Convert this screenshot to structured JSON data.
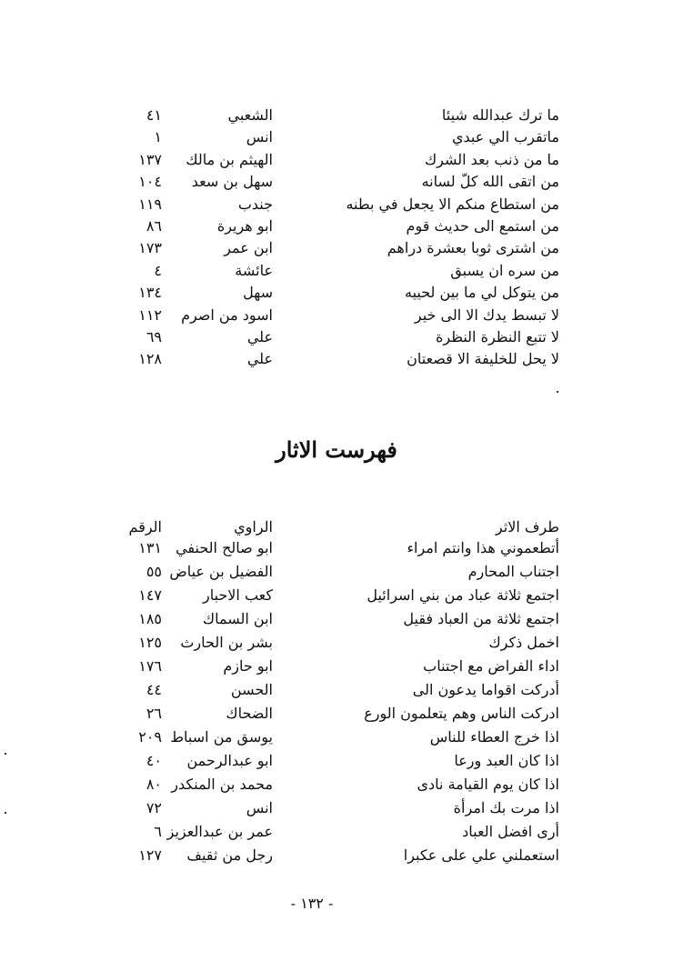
{
  "top_list": [
    {
      "text": "ما ترك عبدالله شيئا",
      "narrator": "الشعبي",
      "number": "٤١"
    },
    {
      "text": "ماتقرب الي عبدي",
      "narrator": "انس",
      "number": "١"
    },
    {
      "text": "ما من ذنب بعد الشرك",
      "narrator": "الهيثم بن مالك",
      "number": "١٣٧"
    },
    {
      "text": "من اتقى الله كلّ لسانه",
      "narrator": "سهل بن سعد",
      "number": "١٠٤"
    },
    {
      "text": "من استطاع منكم الا يجعل في بطنه",
      "narrator": "جندب",
      "number": "١١٩"
    },
    {
      "text": "من استمع الى حديث قوم",
      "narrator": "ابو هريرة",
      "number": "٨٦"
    },
    {
      "text": "من اشترى ثوبا بعشرة دراهم",
      "narrator": "ابن عمر",
      "number": "١٧٣"
    },
    {
      "text": "من سره ان يسبق",
      "narrator": "عائشة",
      "number": "٤"
    },
    {
      "text": "من يتوكل لي ما بين لحييه",
      "narrator": "سهل",
      "number": "١٣٤"
    },
    {
      "text": "لا تبسط يدك الا الى خير",
      "narrator": "اسود من اصرم",
      "number": "١١٢"
    },
    {
      "text": "لا تتبع النظرة النظرة",
      "narrator": "علي",
      "number": "٦٩"
    },
    {
      "text": "لا يحل للخليفة الا قصعتان",
      "narrator": "علي",
      "number": "١٢٨"
    }
  ],
  "section_title": "فهرست الاثار",
  "athar_header": {
    "text": "طرف الاثر",
    "narrator": "الراوي",
    "number": "الرقم"
  },
  "athar_list": [
    {
      "text": "أتطعموني هذا وانتم امراء",
      "narrator": "ابو صالح الحنفي",
      "number": "١٣١"
    },
    {
      "text": "اجتناب المحارم",
      "narrator": "الفضيل بن عياض",
      "number": "٥٥"
    },
    {
      "text": "اجتمع ثلاثة عباد من بني اسرائيل",
      "narrator": "كعب الاحبار",
      "number": "١٤٧"
    },
    {
      "text": "اجتمع ثلاثة من العباد فقيل",
      "narrator": "ابن السماك",
      "number": "١٨٥"
    },
    {
      "text": "اخمل ذكرك",
      "narrator": "بشر بن الحارث",
      "number": "١٢٥"
    },
    {
      "text": "اداء الفراض مع اجتناب",
      "narrator": "ابو حازم",
      "number": "١٧٦"
    },
    {
      "text": "أدركت اقواما يدعون الى",
      "narrator": "الحسن",
      "number": "٤٤"
    },
    {
      "text": "ادركت الناس وهم يتعلمون الورع",
      "narrator": "الضحاك",
      "number": "٢٦"
    },
    {
      "text": "اذا خرج العطاء للناس",
      "narrator": "يوسق من اسباط",
      "number": "٢٠٩"
    },
    {
      "text": "اذا كان العبد ورعا",
      "narrator": "ابو عبدالرحمن",
      "number": "٤٠"
    },
    {
      "text": "اذا كان يوم القيامة نادى",
      "narrator": "محمد بن المنكدر",
      "number": "٨٠"
    },
    {
      "text": "اذا مرت بك امرأة",
      "narrator": "انس",
      "number": "٧٢"
    },
    {
      "text": "أرى افضل العباد",
      "narrator": "عمر بن عبدالعزيز",
      "number": "٦"
    },
    {
      "text": "استعملني علي على عكبرا",
      "narrator": "رجل من ثقيف",
      "number": "١٢٧"
    }
  ],
  "page_number": "- ١٣٢ -"
}
